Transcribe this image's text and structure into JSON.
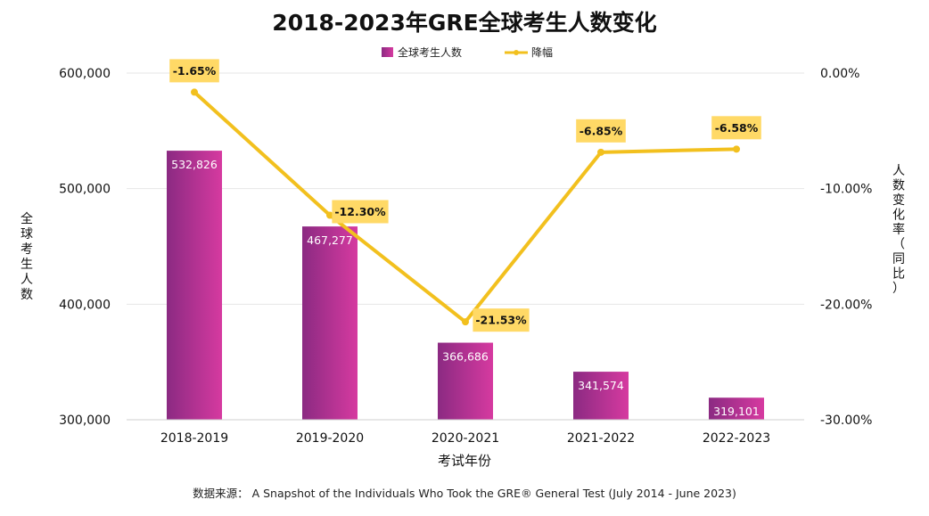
{
  "chart_data": {
    "type": "bar",
    "title": "2018-2023年GRE全球考生人数变化",
    "xlabel": "考试年份",
    "ylabel": "全球考生人数",
    "y2label": "人数变化率（同比）",
    "categories": [
      "2018-2019",
      "2019-2020",
      "2020-2021",
      "2021-2022",
      "2022-2023"
    ],
    "ylim": [
      300000,
      600000
    ],
    "y_ticks": [
      300000,
      400000,
      500000,
      600000
    ],
    "y_tick_labels": [
      "300,000",
      "400,000",
      "500,000",
      "600,000"
    ],
    "y2lim": [
      -30,
      0
    ],
    "y2_ticks": [
      0,
      -10,
      -20,
      -30
    ],
    "y2_tick_labels": [
      "0.00%",
      "-10.00%",
      "-20.00%",
      "-30.00%"
    ],
    "series": [
      {
        "name": "全球考生人数",
        "type": "bar",
        "axis": "left",
        "values": [
          532826,
          467277,
          366686,
          341574,
          319101
        ],
        "labels": [
          "532,826",
          "467,277",
          "366,686",
          "341,574",
          "319,101"
        ],
        "color_start": "#8b2a82",
        "color_end": "#d63aa0"
      },
      {
        "name": "降幅",
        "type": "line",
        "axis": "right",
        "values": [
          -1.65,
          -12.3,
          -21.53,
          -6.85,
          -6.58
        ],
        "labels": [
          "-1.65%",
          "-12.30%",
          "-21.53%",
          "-6.85%",
          "-6.58%"
        ],
        "color": "#f2c01e",
        "label_bg": "#ffd966"
      }
    ],
    "legend": "top-center",
    "grid": true,
    "source_note": "数据来源：  A Snapshot of the Individuals Who Took the GRE® General Test (July 2014 - June 2023)"
  }
}
